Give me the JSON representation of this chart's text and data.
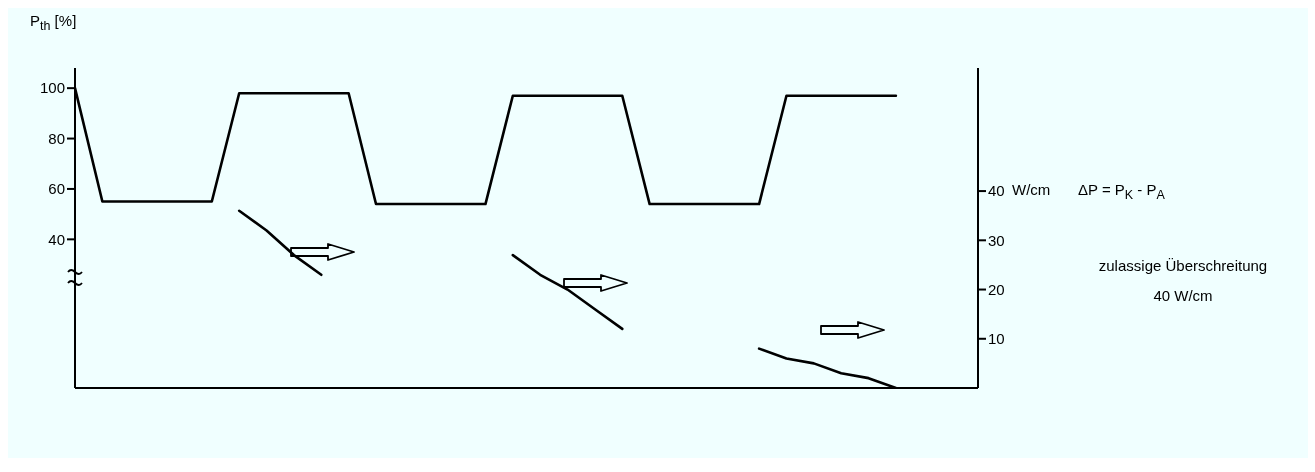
{
  "chart_data": {
    "type": "line",
    "ylabel": "P$_{th}$ [%]",
    "y2label": "W/cm",
    "annotations": [
      "ΔP = P$_{K}$ - P$_{A}$",
      "zulassige Überschreitung\n40 W/cm"
    ],
    "categories": [
      null,
      null,
      null,
      null,
      null,
      null,
      null,
      null,
      null,
      null,
      null,
      null,
      null,
      null,
      null,
      null,
      null,
      null,
      null,
      null,
      null,
      null,
      null,
      null,
      null,
      null,
      null,
      null,
      null,
      null,
      null,
      null,
      null,
      null
    ],
    "ylim": [
      -19,
      108
    ],
    "yticks": [
      40,
      60,
      80,
      100
    ],
    "y2lim": [
      0,
      65
    ],
    "y2ticks": [
      10,
      20,
      30,
      40
    ],
    "grid": false,
    "marker": "none",
    "line_style": "solid",
    "series": [
      {
        "color": "#000000",
        "values": [
          100,
          55,
          55,
          55,
          55,
          55,
          98,
          98,
          98,
          98,
          98,
          54,
          54,
          54,
          54,
          54,
          97,
          97,
          97,
          97,
          97,
          54,
          54,
          54,
          54,
          54,
          97,
          97,
          97,
          97,
          97,
          null,
          null,
          null
        ]
      },
      {
        "color": "#000000",
        "axis": "y2",
        "values": [
          null,
          null,
          null,
          null,
          null,
          null,
          36,
          32,
          27,
          23,
          null,
          null,
          null,
          null,
          null,
          null,
          null,
          null,
          null,
          null,
          null,
          null,
          null,
          null,
          null,
          null,
          null,
          null,
          null,
          null,
          null,
          null,
          null,
          null
        ]
      },
      {
        "color": "#000000",
        "axis": "y2",
        "values": [
          null,
          null,
          null,
          null,
          null,
          null,
          null,
          null,
          null,
          null,
          null,
          null,
          null,
          null,
          null,
          null,
          27,
          23,
          20,
          16,
          12,
          null,
          null,
          null,
          null,
          null,
          null,
          null,
          null,
          null,
          null,
          null,
          null,
          null
        ]
      },
      {
        "color": "#000000",
        "axis": "y2",
        "values": [
          null,
          null,
          null,
          null,
          null,
          null,
          null,
          null,
          null,
          null,
          null,
          null,
          null,
          null,
          null,
          null,
          null,
          null,
          null,
          null,
          null,
          null,
          null,
          null,
          null,
          8,
          6,
          5,
          3,
          2,
          0,
          null,
          null,
          null
        ]
      }
    ]
  }
}
